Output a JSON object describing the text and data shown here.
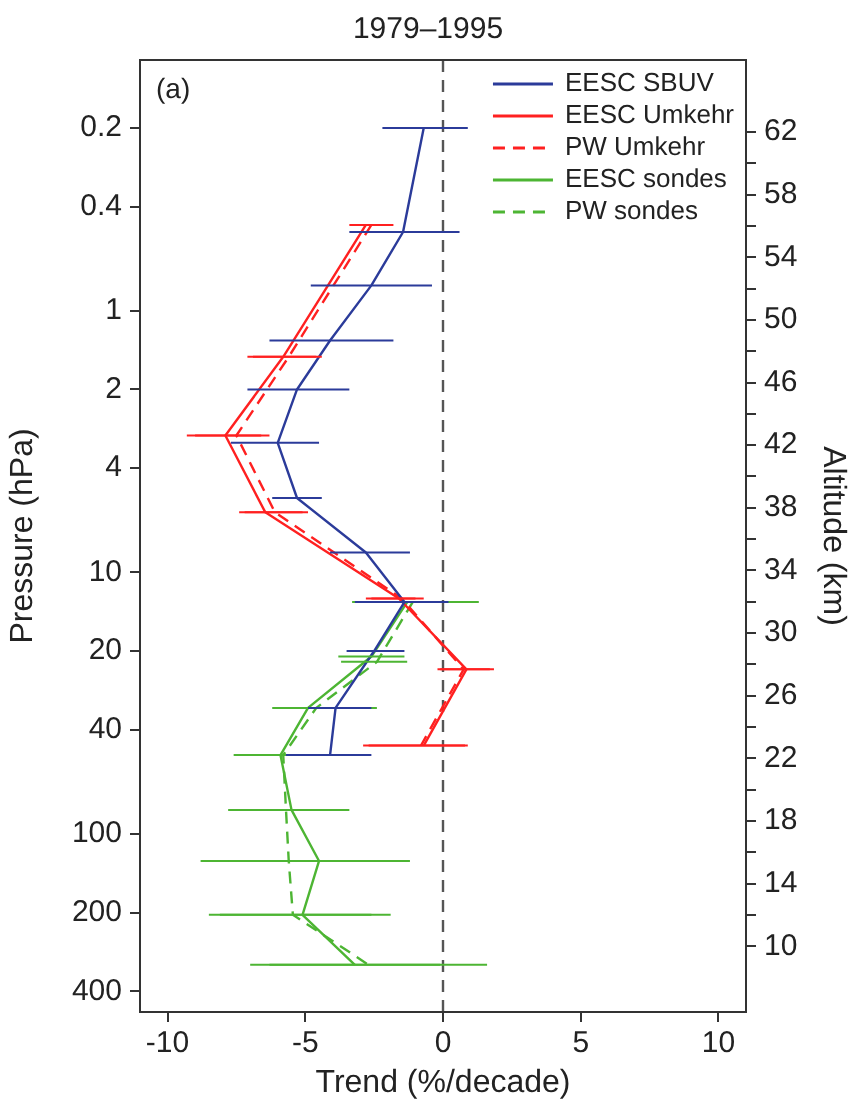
{
  "chart_data": {
    "type": "line",
    "title": "1979–1995",
    "xlabel": "Trend (%/decade)",
    "ylabel": "Pressure (hPa)",
    "y2label": "Altitude (km)",
    "xlim": [
      -11,
      11
    ],
    "xticks": [
      -10,
      -5,
      0,
      5,
      10
    ],
    "ylim": [
      480,
      0.11
    ],
    "yticks": [
      0.2,
      0.4,
      1,
      2,
      4,
      10,
      20,
      40,
      100,
      200,
      400
    ],
    "y2lim": [
      5.8,
      66.6
    ],
    "y2ticks": [
      10,
      {
        "value": 12,
        "label": null
      },
      14,
      {
        "value": 16,
        "label": null
      },
      18,
      {
        "value": 20,
        "label": null
      },
      22,
      {
        "value": 24,
        "label": null
      },
      26,
      {
        "value": 28,
        "label": null
      },
      30,
      {
        "value": 32,
        "label": null
      },
      34,
      {
        "value": 36,
        "label": null
      },
      38,
      {
        "value": 40,
        "label": null
      },
      42,
      {
        "value": 44,
        "label": null
      },
      46,
      {
        "value": 48,
        "label": null
      },
      50,
      {
        "value": 52,
        "label": null
      },
      54,
      {
        "value": 56,
        "label": null
      },
      58,
      {
        "value": 60,
        "label": null
      },
      62
    ],
    "log": "y",
    "grid": false,
    "legend": "top right",
    "marker": "none",
    "series": [
      {
        "name": "EESC SBUV",
        "color": "#2b3b9a",
        "line_style": "solid",
        "x": [
          -0.7,
          -1.45,
          -2.6,
          -4.1,
          -5.3,
          -6.0,
          -5.3,
          -2.8,
          -1.4,
          -2.5,
          -3.9,
          -4.1
        ],
        "values": [
          0.2,
          0.5,
          0.8,
          1.3,
          2,
          3.2,
          5.2,
          8.4,
          13,
          20,
          33,
          50
        ],
        "xerrors": [
          [
            -2.2,
            0.9
          ],
          [
            -3.4,
            0.6
          ],
          [
            -4.8,
            -0.4
          ],
          [
            -6.3,
            -1.8
          ],
          [
            -7.1,
            -3.4
          ],
          [
            -7.7,
            -4.5
          ],
          [
            -6.2,
            -4.4
          ],
          [
            -4.1,
            -1.2
          ],
          [
            -3.2,
            0.2
          ],
          [
            -3.5,
            -1.4
          ],
          [
            -4.9,
            -2.6
          ],
          [
            -5.7,
            -2.6
          ]
        ]
      },
      {
        "name": "EESC Umkehr",
        "color": "#ff2020",
        "line_style": "solid",
        "x": [
          -2.8,
          -5.8,
          -7.9,
          -6.45,
          -1.6,
          0.85,
          -0.7
        ],
        "values": [
          0.47,
          1.5,
          3,
          5.9,
          12.6,
          23.5,
          46
        ],
        "xerrors": [
          [
            -3.4,
            -2.0
          ],
          [
            -7.1,
            -4.6
          ],
          [
            -9.3,
            -6.6
          ],
          [
            -7.4,
            -5.1
          ],
          [
            -2.8,
            -1.0
          ],
          [
            -0.1,
            1.85
          ],
          [
            -2.7,
            0.9
          ]
        ]
      },
      {
        "name": "PW Umkehr",
        "color": "#ff2020",
        "line_style": "dashed",
        "x": [
          -2.6,
          -5.6,
          -7.5,
          -6.1,
          -1.5,
          0.75,
          -0.8
        ],
        "values": [
          0.47,
          1.5,
          3,
          5.9,
          12.6,
          23.5,
          46
        ],
        "xerrors": [
          [
            -3.2,
            -1.8
          ],
          [
            -6.9,
            -4.4
          ],
          [
            -9.0,
            -6.3
          ],
          [
            -7.2,
            -4.9
          ],
          [
            -2.6,
            -0.7
          ],
          [
            -0.2,
            1.7
          ],
          [
            -2.9,
            0.8
          ]
        ]
      },
      {
        "name": "EESC sondes",
        "color": "#4db533",
        "line_style": "solid",
        "x": [
          -1.3,
          -2.6,
          -4.9,
          -5.9,
          -5.5,
          -4.5,
          -5.1,
          -3.2
        ],
        "values": [
          13,
          21,
          33,
          50,
          81,
          127,
          204,
          317
        ],
        "xerrors": [
          [
            -3.3,
            0.7
          ],
          [
            -3.8,
            -1.4
          ],
          [
            -6.2,
            -2.8
          ],
          [
            -7.6,
            -4.4
          ],
          [
            -7.6,
            -3.4
          ],
          [
            -7.8,
            -1.2
          ],
          [
            -8.1,
            -2.6
          ],
          [
            -6.3,
            -0.1
          ]
        ]
      },
      {
        "name": "PW sondes",
        "color": "#4db533",
        "line_style": "dashed",
        "x": [
          -1.1,
          -2.4,
          -4.6,
          -5.8,
          -5.7,
          -5.6,
          -5.45,
          -2.7
        ],
        "values": [
          13,
          22,
          33,
          50,
          81,
          127,
          204,
          317
        ],
        "xerrors": [
          [
            -3.0,
            1.3
          ],
          [
            -3.7,
            -1.3
          ],
          [
            -6.0,
            -2.4
          ],
          [
            -7.4,
            -4.2
          ],
          [
            -7.8,
            -3.6
          ],
          [
            -8.8,
            -2.4
          ],
          [
            -8.5,
            -1.9
          ],
          [
            -7.0,
            1.6
          ]
        ]
      }
    ],
    "ref_lines": [
      {
        "axis": "x",
        "value": 0,
        "color": "#555555",
        "line_style": "dashed"
      }
    ],
    "annotations": [
      "(a)"
    ]
  }
}
